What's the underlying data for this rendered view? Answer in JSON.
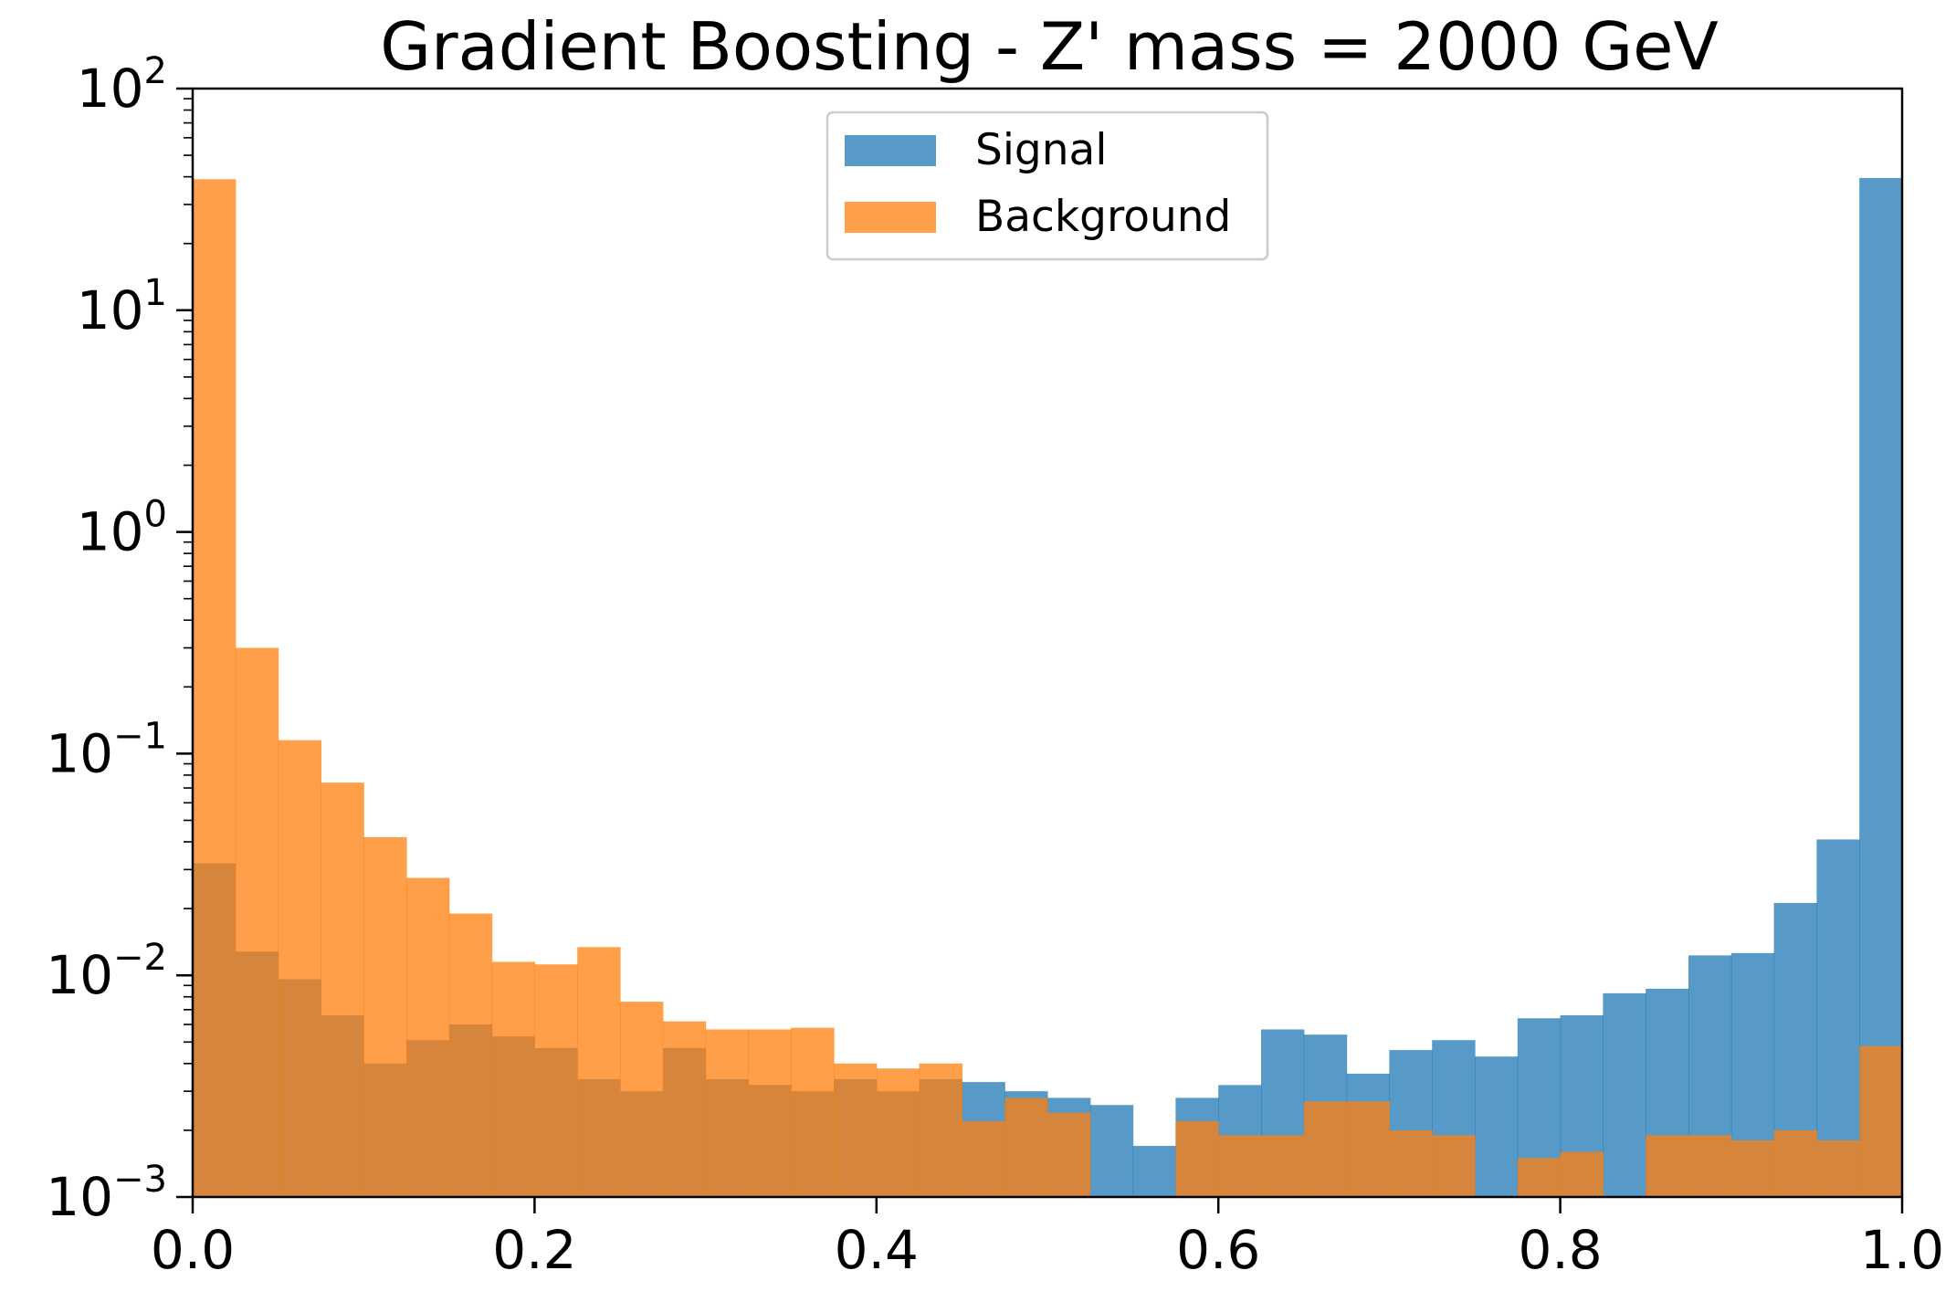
{
  "chart_data": {
    "type": "bar",
    "title": "Gradient Boosting - Z' mass = 2000 GeV",
    "xlabel": "",
    "ylabel": "",
    "xlim": [
      0.0,
      1.0
    ],
    "ylim": [
      0.001,
      100
    ],
    "yscale": "log",
    "xticks": [
      "0.0",
      "0.2",
      "0.4",
      "0.6",
      "0.8",
      "1.0"
    ],
    "yticks": [
      {
        "base": "10",
        "exp": "2"
      },
      {
        "base": "10",
        "exp": "1"
      },
      {
        "base": "10",
        "exp": "0"
      },
      {
        "base": "10",
        "exp": "−1"
      },
      {
        "base": "10",
        "exp": "−2"
      },
      {
        "base": "10",
        "exp": "−3"
      }
    ],
    "legend_position": "upper-center",
    "bin_edges": [
      0.0,
      0.025,
      0.05,
      0.075,
      0.1,
      0.125,
      0.15,
      0.175,
      0.2,
      0.225,
      0.25,
      0.275,
      0.3,
      0.325,
      0.35,
      0.375,
      0.4,
      0.425,
      0.45,
      0.475,
      0.5,
      0.525,
      0.55,
      0.575,
      0.6,
      0.625,
      0.65,
      0.675,
      0.7,
      0.725,
      0.75,
      0.775,
      0.8,
      0.825,
      0.85,
      0.875,
      0.9,
      0.925,
      0.95,
      0.975,
      1.0
    ],
    "series": [
      {
        "name": "Signal",
        "color": "#1f77b4",
        "values": [
          0.032,
          0.0128,
          0.0096,
          0.0066,
          0.004,
          0.0051,
          0.006,
          0.0053,
          0.0047,
          0.0034,
          0.003,
          0.0047,
          0.0034,
          0.0032,
          0.003,
          0.0034,
          0.003,
          0.0034,
          0.0033,
          0.003,
          0.0028,
          0.0026,
          0.0017,
          0.0028,
          0.0032,
          0.0057,
          0.0054,
          0.0036,
          0.0046,
          0.0051,
          0.0043,
          0.0064,
          0.0066,
          0.0083,
          0.0087,
          0.0123,
          0.0126,
          0.0212,
          0.041,
          39.5
        ]
      },
      {
        "name": "Background",
        "color": "#ff7f0e",
        "values": [
          39.0,
          0.3,
          0.115,
          0.074,
          0.042,
          0.0275,
          0.019,
          0.0115,
          0.0112,
          0.0134,
          0.0076,
          0.0062,
          0.0057,
          0.0057,
          0.0058,
          0.004,
          0.0038,
          0.004,
          0.0022,
          0.0028,
          0.0024,
          0.0,
          0.0,
          0.0022,
          0.0019,
          0.0019,
          0.0027,
          0.0027,
          0.002,
          0.0019,
          0.0,
          0.0015,
          0.0016,
          0.0,
          0.0019,
          0.0019,
          0.0018,
          0.002,
          0.0018,
          0.0048
        ]
      }
    ]
  }
}
